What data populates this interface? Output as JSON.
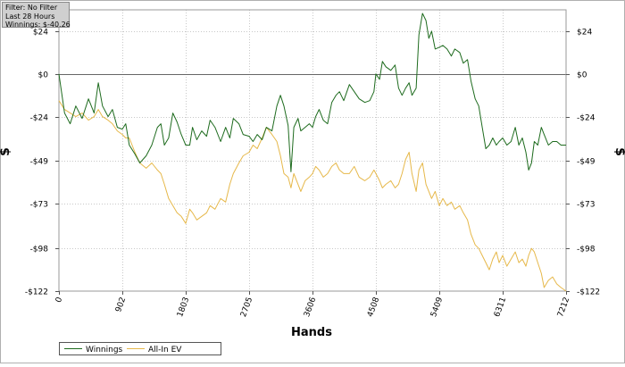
{
  "info": {
    "filter": "Filter: No Filter",
    "period": "Last  28 Hours",
    "winnings": "Winnings: $-40.26"
  },
  "chart_data": {
    "type": "line",
    "xlabel": "Hands",
    "ylabel": "$",
    "xlim": [
      0,
      7212
    ],
    "ylim": [
      -122,
      36
    ],
    "x_ticks": [
      0,
      902,
      1803,
      2705,
      3606,
      4508,
      5409,
      6311,
      7212
    ],
    "y_ticks": [
      {
        "value": 24,
        "label": "$24"
      },
      {
        "value": 0,
        "label": "$0"
      },
      {
        "value": -24,
        "label": "-$24"
      },
      {
        "value": -49,
        "label": "-$49"
      },
      {
        "value": -73,
        "label": "-$73"
      },
      {
        "value": -98,
        "label": "-$98"
      },
      {
        "value": -122,
        "label": "-$122"
      }
    ],
    "grid": true,
    "legend_position": "bottom-left",
    "series": [
      {
        "name": "Winnings",
        "color": "#1e6b1e",
        "points": [
          [
            0,
            0
          ],
          [
            80,
            -22
          ],
          [
            160,
            -28
          ],
          [
            240,
            -18
          ],
          [
            330,
            -25
          ],
          [
            420,
            -14
          ],
          [
            500,
            -22
          ],
          [
            560,
            -5
          ],
          [
            620,
            -18
          ],
          [
            700,
            -24
          ],
          [
            760,
            -20
          ],
          [
            830,
            -30
          ],
          [
            902,
            -31
          ],
          [
            950,
            -28
          ],
          [
            1000,
            -40
          ],
          [
            1080,
            -45
          ],
          [
            1150,
            -50
          ],
          [
            1240,
            -46
          ],
          [
            1320,
            -40
          ],
          [
            1400,
            -30
          ],
          [
            1450,
            -28
          ],
          [
            1500,
            -40
          ],
          [
            1560,
            -36
          ],
          [
            1620,
            -22
          ],
          [
            1680,
            -27
          ],
          [
            1740,
            -34
          ],
          [
            1803,
            -40
          ],
          [
            1860,
            -40
          ],
          [
            1900,
            -30
          ],
          [
            1960,
            -37
          ],
          [
            2030,
            -32
          ],
          [
            2100,
            -35
          ],
          [
            2150,
            -26
          ],
          [
            2220,
            -30
          ],
          [
            2300,
            -38
          ],
          [
            2370,
            -30
          ],
          [
            2430,
            -36
          ],
          [
            2480,
            -25
          ],
          [
            2560,
            -28
          ],
          [
            2620,
            -34
          ],
          [
            2705,
            -35
          ],
          [
            2760,
            -38
          ],
          [
            2820,
            -34
          ],
          [
            2890,
            -37
          ],
          [
            2950,
            -30
          ],
          [
            3030,
            -32
          ],
          [
            3100,
            -18
          ],
          [
            3150,
            -12
          ],
          [
            3200,
            -18
          ],
          [
            3260,
            -29
          ],
          [
            3300,
            -55
          ],
          [
            3340,
            -30
          ],
          [
            3400,
            -25
          ],
          [
            3440,
            -32
          ],
          [
            3500,
            -30
          ],
          [
            3560,
            -28
          ],
          [
            3606,
            -30
          ],
          [
            3650,
            -24
          ],
          [
            3700,
            -20
          ],
          [
            3760,
            -26
          ],
          [
            3820,
            -28
          ],
          [
            3880,
            -16
          ],
          [
            3940,
            -12
          ],
          [
            3990,
            -10
          ],
          [
            4050,
            -15
          ],
          [
            4130,
            -6
          ],
          [
            4200,
            -10
          ],
          [
            4270,
            -14
          ],
          [
            4350,
            -16
          ],
          [
            4420,
            -15
          ],
          [
            4480,
            -10
          ],
          [
            4508,
            0
          ],
          [
            4560,
            -3
          ],
          [
            4600,
            7
          ],
          [
            4650,
            4
          ],
          [
            4720,
            2
          ],
          [
            4780,
            5
          ],
          [
            4830,
            -8
          ],
          [
            4880,
            -12
          ],
          [
            4930,
            -8
          ],
          [
            4980,
            -5
          ],
          [
            5020,
            -12
          ],
          [
            5080,
            -8
          ],
          [
            5120,
            22
          ],
          [
            5170,
            34
          ],
          [
            5220,
            30
          ],
          [
            5260,
            20
          ],
          [
            5300,
            24
          ],
          [
            5350,
            14
          ],
          [
            5409,
            15
          ],
          [
            5460,
            16
          ],
          [
            5520,
            14
          ],
          [
            5580,
            10
          ],
          [
            5630,
            14
          ],
          [
            5700,
            12
          ],
          [
            5750,
            6
          ],
          [
            5810,
            8
          ],
          [
            5860,
            -4
          ],
          [
            5920,
            -14
          ],
          [
            5970,
            -18
          ],
          [
            6020,
            -30
          ],
          [
            6070,
            -42
          ],
          [
            6120,
            -40
          ],
          [
            6170,
            -36
          ],
          [
            6220,
            -40
          ],
          [
            6260,
            -38
          ],
          [
            6311,
            -36
          ],
          [
            6370,
            -40
          ],
          [
            6430,
            -38
          ],
          [
            6490,
            -30
          ],
          [
            6540,
            -40
          ],
          [
            6590,
            -36
          ],
          [
            6640,
            -44
          ],
          [
            6680,
            -54
          ],
          [
            6720,
            -50
          ],
          [
            6760,
            -38
          ],
          [
            6810,
            -40
          ],
          [
            6860,
            -30
          ],
          [
            6900,
            -34
          ],
          [
            6960,
            -40
          ],
          [
            7020,
            -38
          ],
          [
            7080,
            -38
          ],
          [
            7140,
            -40
          ],
          [
            7212,
            -40
          ]
        ]
      },
      {
        "name": "All-In EV",
        "color": "#e6b84a",
        "points": [
          [
            0,
            -15
          ],
          [
            80,
            -20
          ],
          [
            160,
            -22
          ],
          [
            240,
            -24
          ],
          [
            330,
            -22
          ],
          [
            420,
            -26
          ],
          [
            500,
            -24
          ],
          [
            560,
            -20
          ],
          [
            620,
            -24
          ],
          [
            700,
            -26
          ],
          [
            760,
            -28
          ],
          [
            830,
            -32
          ],
          [
            902,
            -34
          ],
          [
            950,
            -36
          ],
          [
            1000,
            -36
          ],
          [
            1080,
            -44
          ],
          [
            1150,
            -50
          ],
          [
            1240,
            -53
          ],
          [
            1320,
            -50
          ],
          [
            1400,
            -54
          ],
          [
            1450,
            -56
          ],
          [
            1500,
            -62
          ],
          [
            1560,
            -70
          ],
          [
            1620,
            -74
          ],
          [
            1680,
            -78
          ],
          [
            1740,
            -80
          ],
          [
            1803,
            -84
          ],
          [
            1860,
            -76
          ],
          [
            1900,
            -78
          ],
          [
            1960,
            -82
          ],
          [
            2030,
            -80
          ],
          [
            2100,
            -78
          ],
          [
            2150,
            -74
          ],
          [
            2220,
            -76
          ],
          [
            2300,
            -70
          ],
          [
            2370,
            -72
          ],
          [
            2430,
            -62
          ],
          [
            2480,
            -56
          ],
          [
            2560,
            -50
          ],
          [
            2620,
            -46
          ],
          [
            2705,
            -44
          ],
          [
            2760,
            -40
          ],
          [
            2820,
            -42
          ],
          [
            2890,
            -36
          ],
          [
            2950,
            -30
          ],
          [
            3030,
            -34
          ],
          [
            3100,
            -38
          ],
          [
            3150,
            -46
          ],
          [
            3200,
            -56
          ],
          [
            3260,
            -58
          ],
          [
            3300,
            -64
          ],
          [
            3340,
            -56
          ],
          [
            3400,
            -62
          ],
          [
            3440,
            -66
          ],
          [
            3500,
            -60
          ],
          [
            3560,
            -58
          ],
          [
            3606,
            -56
          ],
          [
            3650,
            -52
          ],
          [
            3700,
            -54
          ],
          [
            3760,
            -58
          ],
          [
            3820,
            -56
          ],
          [
            3880,
            -52
          ],
          [
            3940,
            -50
          ],
          [
            3990,
            -54
          ],
          [
            4050,
            -56
          ],
          [
            4130,
            -56
          ],
          [
            4200,
            -52
          ],
          [
            4270,
            -58
          ],
          [
            4350,
            -60
          ],
          [
            4420,
            -58
          ],
          [
            4480,
            -54
          ],
          [
            4508,
            -56
          ],
          [
            4560,
            -60
          ],
          [
            4600,
            -64
          ],
          [
            4650,
            -62
          ],
          [
            4720,
            -60
          ],
          [
            4780,
            -64
          ],
          [
            4830,
            -62
          ],
          [
            4880,
            -56
          ],
          [
            4930,
            -48
          ],
          [
            4980,
            -44
          ],
          [
            5020,
            -56
          ],
          [
            5080,
            -66
          ],
          [
            5120,
            -54
          ],
          [
            5170,
            -50
          ],
          [
            5220,
            -62
          ],
          [
            5260,
            -66
          ],
          [
            5300,
            -70
          ],
          [
            5350,
            -66
          ],
          [
            5409,
            -74
          ],
          [
            5460,
            -70
          ],
          [
            5520,
            -74
          ],
          [
            5580,
            -72
          ],
          [
            5630,
            -76
          ],
          [
            5700,
            -74
          ],
          [
            5750,
            -78
          ],
          [
            5810,
            -82
          ],
          [
            5860,
            -90
          ],
          [
            5920,
            -96
          ],
          [
            5970,
            -98
          ],
          [
            6020,
            -102
          ],
          [
            6070,
            -106
          ],
          [
            6120,
            -110
          ],
          [
            6170,
            -104
          ],
          [
            6220,
            -100
          ],
          [
            6260,
            -106
          ],
          [
            6311,
            -102
          ],
          [
            6370,
            -108
          ],
          [
            6430,
            -104
          ],
          [
            6490,
            -100
          ],
          [
            6540,
            -106
          ],
          [
            6590,
            -104
          ],
          [
            6640,
            -108
          ],
          [
            6680,
            -102
          ],
          [
            6720,
            -98
          ],
          [
            6760,
            -100
          ],
          [
            6810,
            -106
          ],
          [
            6860,
            -112
          ],
          [
            6900,
            -120
          ],
          [
            6960,
            -116
          ],
          [
            7020,
            -114
          ],
          [
            7080,
            -118
          ],
          [
            7140,
            -120
          ],
          [
            7212,
            -122
          ]
        ]
      }
    ]
  }
}
